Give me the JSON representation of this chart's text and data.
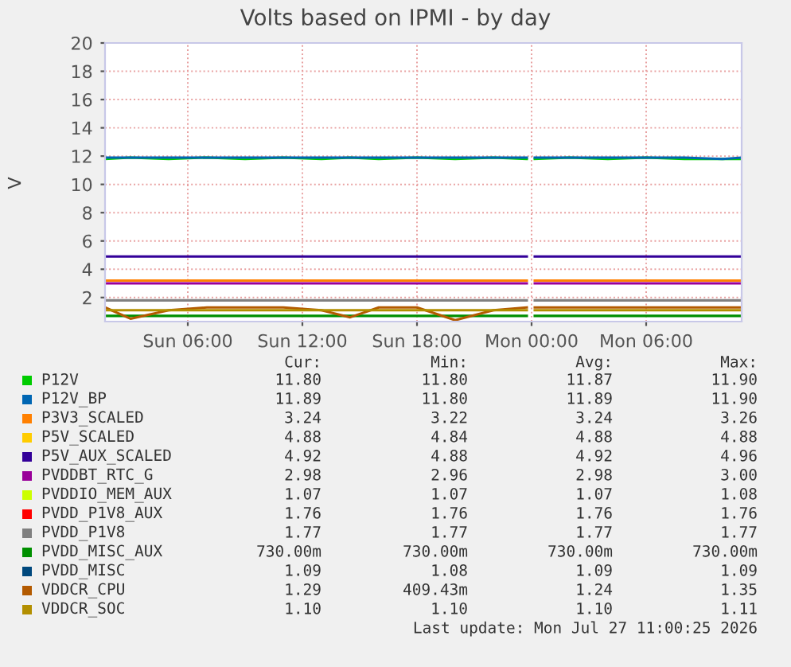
{
  "chart_data": {
    "type": "line",
    "title": "Volts based on IPMI - by day",
    "ylabel": "V",
    "x": [
      "2026-07-26T01:40",
      "2026-07-26T03:00",
      "2026-07-26T05:00",
      "2026-07-26T07:00",
      "2026-07-26T09:00",
      "2026-07-26T11:00",
      "2026-07-26T13:00",
      "2026-07-26T14:30",
      "2026-07-26T16:00",
      "2026-07-26T18:00",
      "2026-07-26T20:00",
      "2026-07-26T22:00",
      "2026-07-26T23:45",
      "2026-07-26T23:55",
      "2026-07-27T00:10",
      "2026-07-27T02:00",
      "2026-07-27T04:00",
      "2026-07-27T06:00",
      "2026-07-27T08:00",
      "2026-07-27T10:00",
      "2026-07-27T11:00"
    ],
    "series": [
      {
        "name": "P12V",
        "color": "#00cc00",
        "values": [
          11.8,
          11.9,
          11.8,
          11.9,
          11.8,
          11.9,
          11.8,
          11.9,
          11.8,
          11.9,
          11.8,
          11.9,
          11.8,
          null,
          11.8,
          11.9,
          11.8,
          11.9,
          11.8,
          11.8,
          11.8
        ]
      },
      {
        "name": "P12V_BP",
        "color": "#0066b3",
        "values": [
          11.9,
          11.9,
          11.9,
          11.9,
          11.9,
          11.9,
          11.9,
          11.9,
          11.9,
          11.9,
          11.9,
          11.9,
          11.9,
          null,
          11.9,
          11.9,
          11.9,
          11.9,
          11.9,
          11.8,
          11.9
        ]
      },
      {
        "name": "P3V3_SCALED",
        "color": "#ff8000",
        "values": [
          3.2,
          3.2,
          3.2,
          3.2,
          3.2,
          3.2,
          3.2,
          3.2,
          3.2,
          3.2,
          3.2,
          3.2,
          3.2,
          null,
          3.2,
          3.2,
          3.2,
          3.2,
          3.2,
          3.2,
          3.2
        ]
      },
      {
        "name": "P5V_SCALED",
        "color": "#ffcc00",
        "values": [
          null,
          null,
          null,
          null,
          null,
          null,
          null,
          null,
          null,
          null,
          null,
          null,
          null,
          null,
          null,
          null,
          null,
          null,
          null,
          null,
          null
        ]
      },
      {
        "name": "P5V_AUX_SCALED",
        "color": "#330099",
        "values": [
          4.9,
          4.9,
          4.9,
          4.9,
          4.9,
          4.9,
          4.9,
          4.9,
          4.9,
          4.9,
          4.9,
          4.9,
          4.9,
          null,
          4.9,
          4.9,
          4.9,
          4.9,
          4.9,
          4.9,
          4.9
        ]
      },
      {
        "name": "PVDDBT_RTC_G",
        "color": "#990099",
        "values": [
          3.0,
          3.0,
          3.0,
          3.0,
          3.0,
          3.0,
          3.0,
          3.0,
          3.0,
          3.0,
          3.0,
          3.0,
          3.0,
          null,
          3.0,
          3.0,
          3.0,
          3.0,
          3.0,
          3.0,
          3.0
        ]
      },
      {
        "name": "PVDDIO_MEM_AUX",
        "color": "#ccff00",
        "values": [
          null,
          null,
          null,
          null,
          null,
          null,
          null,
          null,
          null,
          null,
          null,
          null,
          null,
          null,
          null,
          null,
          null,
          null,
          null,
          null,
          null
        ]
      },
      {
        "name": "PVDD_P1V8_AUX",
        "color": "#ff0000",
        "values": [
          null,
          null,
          null,
          null,
          null,
          null,
          null,
          null,
          null,
          null,
          null,
          null,
          null,
          null,
          null,
          null,
          null,
          null,
          null,
          null,
          null
        ]
      },
      {
        "name": "PVDD_P1V8",
        "color": "#808080",
        "values": [
          1.8,
          1.8,
          1.8,
          1.8,
          1.8,
          1.8,
          1.8,
          1.8,
          1.8,
          1.8,
          1.8,
          1.8,
          1.8,
          null,
          1.8,
          1.8,
          1.8,
          1.8,
          1.8,
          1.8,
          1.8
        ]
      },
      {
        "name": "PVDD_MISC_AUX",
        "color": "#008f00",
        "values": [
          0.7,
          0.7,
          0.7,
          0.7,
          0.7,
          0.7,
          0.7,
          0.7,
          0.7,
          0.7,
          0.7,
          0.7,
          0.7,
          null,
          0.7,
          0.7,
          0.7,
          0.7,
          0.7,
          0.7,
          0.7
        ]
      },
      {
        "name": "PVDD_MISC",
        "color": "#00487d",
        "values": [
          null,
          null,
          null,
          null,
          null,
          null,
          null,
          null,
          null,
          null,
          null,
          null,
          null,
          null,
          null,
          null,
          null,
          null,
          null,
          null,
          null
        ]
      },
      {
        "name": "VDDCR_CPU",
        "color": "#b35a00",
        "values": [
          1.3,
          0.5,
          1.1,
          1.3,
          1.3,
          1.3,
          1.1,
          0.6,
          1.3,
          1.3,
          0.4,
          1.1,
          1.3,
          null,
          1.3,
          1.3,
          1.3,
          1.3,
          1.3,
          1.3,
          1.3
        ]
      },
      {
        "name": "VDDCR_SOC",
        "color": "#b38f00",
        "values": [
          1.1,
          1.1,
          1.1,
          1.1,
          1.1,
          1.1,
          1.1,
          1.1,
          1.1,
          1.1,
          1.1,
          1.1,
          1.1,
          null,
          1.1,
          1.1,
          1.1,
          1.1,
          1.1,
          1.1,
          1.1
        ]
      }
    ],
    "xlim": [
      "2026-07-26T01:40",
      "2026-07-27T11:00"
    ],
    "xticks": [
      {
        "value": "2026-07-26T06:00",
        "label": "Sun 06:00"
      },
      {
        "value": "2026-07-26T12:00",
        "label": "Sun 12:00"
      },
      {
        "value": "2026-07-26T18:00",
        "label": "Sun 18:00"
      },
      {
        "value": "2026-07-27T00:00",
        "label": "Mon 00:00"
      },
      {
        "value": "2026-07-27T06:00",
        "label": "Mon 06:00"
      }
    ],
    "ylim": [
      0.3,
      20
    ],
    "yticks": [
      2,
      4,
      6,
      8,
      10,
      12,
      14,
      16,
      18,
      20
    ],
    "grid": true,
    "legend": "bottom",
    "annotations": [
      "Cur:",
      "Min:",
      "Avg:",
      "Max:",
      "11.80",
      "11.80",
      "11.87",
      "11.90",
      "11.89",
      "11.80",
      "11.89",
      "11.90",
      "3.24",
      "3.22",
      "3.24",
      "3.26",
      "4.88",
      "4.84",
      "4.88",
      "4.88",
      "4.92",
      "4.88",
      "4.92",
      "4.96",
      "2.98",
      "2.96",
      "2.98",
      "3.00",
      "1.07",
      "1.07",
      "1.07",
      "1.08",
      "1.76",
      "1.76",
      "1.76",
      "1.76",
      "1.77",
      "1.77",
      "1.77",
      "1.77",
      "730.00m",
      "730.00m",
      "730.00m",
      "730.00m",
      "1.09",
      "1.08",
      "1.09",
      "1.09",
      "1.29",
      "409.43m",
      "1.24",
      "1.35",
      "1.10",
      "1.10",
      "1.10",
      "1.11",
      "Last update: Mon Jul 27 11:00:25 2026"
    ]
  }
}
